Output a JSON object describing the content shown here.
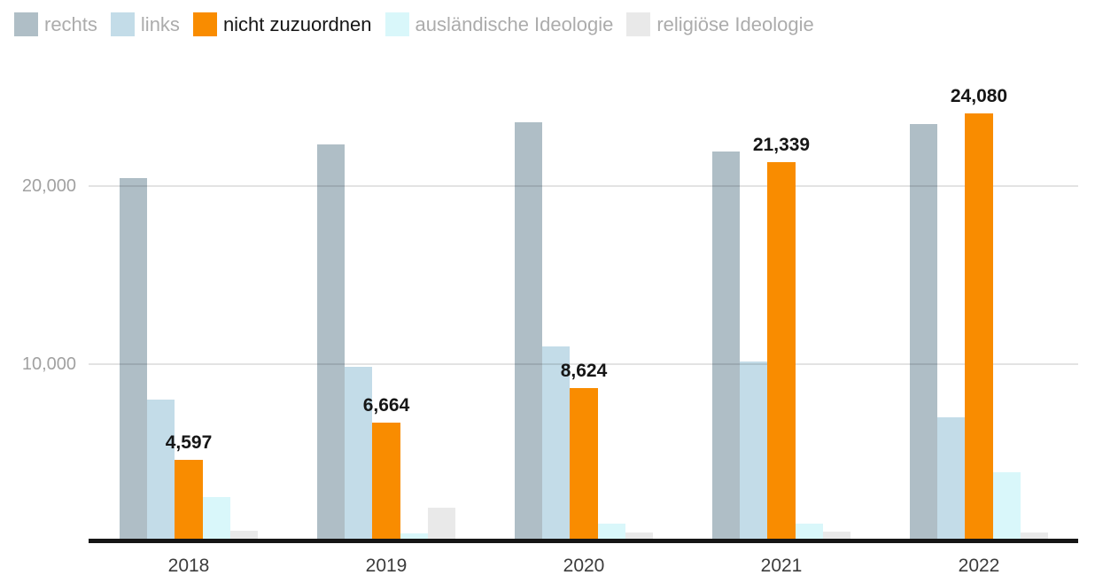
{
  "chart_data": {
    "type": "bar",
    "title": "",
    "categories": [
      "2018",
      "2019",
      "2020",
      "2021",
      "2022"
    ],
    "series": [
      {
        "name": "rechts",
        "color": "#AFBEC6",
        "highlighted": false,
        "values": [
          20431,
          22342,
          23604,
          21964,
          23493
        ]
      },
      {
        "name": "links",
        "color": "#C3DCE8",
        "highlighted": false,
        "values": [
          7961,
          9849,
          10971,
          10113,
          6976
        ]
      },
      {
        "name": "nicht zuzuordnen",
        "color": "#F98C00",
        "highlighted": true,
        "values": [
          4597,
          6664,
          8624,
          21339,
          24080
        ],
        "value_labels": [
          "4,597",
          "6,664",
          "8,624",
          "21,339",
          "24,080"
        ]
      },
      {
        "name": "ausländische Ideologie",
        "color": "#D9F7FA",
        "highlighted": false,
        "values": [
          2487,
          425,
          1016,
          1011,
          3886
        ]
      },
      {
        "name": "religiöse Ideologie",
        "color": "#E9E9E9",
        "highlighted": false,
        "values": [
          586,
          1897,
          477,
          572,
          481
        ]
      }
    ],
    "y_axis": {
      "range": [
        0,
        26000
      ],
      "grid": true,
      "ticks": [
        {
          "value": 10000,
          "label": "10,000"
        },
        {
          "value": 20000,
          "label": "20,000"
        }
      ]
    },
    "x_axis": {
      "tick_labels": [
        "2018",
        "2019",
        "2020",
        "2021",
        "2022"
      ]
    },
    "legend_position": "top",
    "colors": {
      "background": "#FFFFFF",
      "highlight_text": "#161616",
      "legend_muted_text": "#ACACAC",
      "y_label_text": "#A1A1A1",
      "x_label_text": "#3C3C3C",
      "gridline": "rgba(26,26,26,0.12)",
      "axis_line": "#161616",
      "value_label_text": "#161616"
    }
  }
}
